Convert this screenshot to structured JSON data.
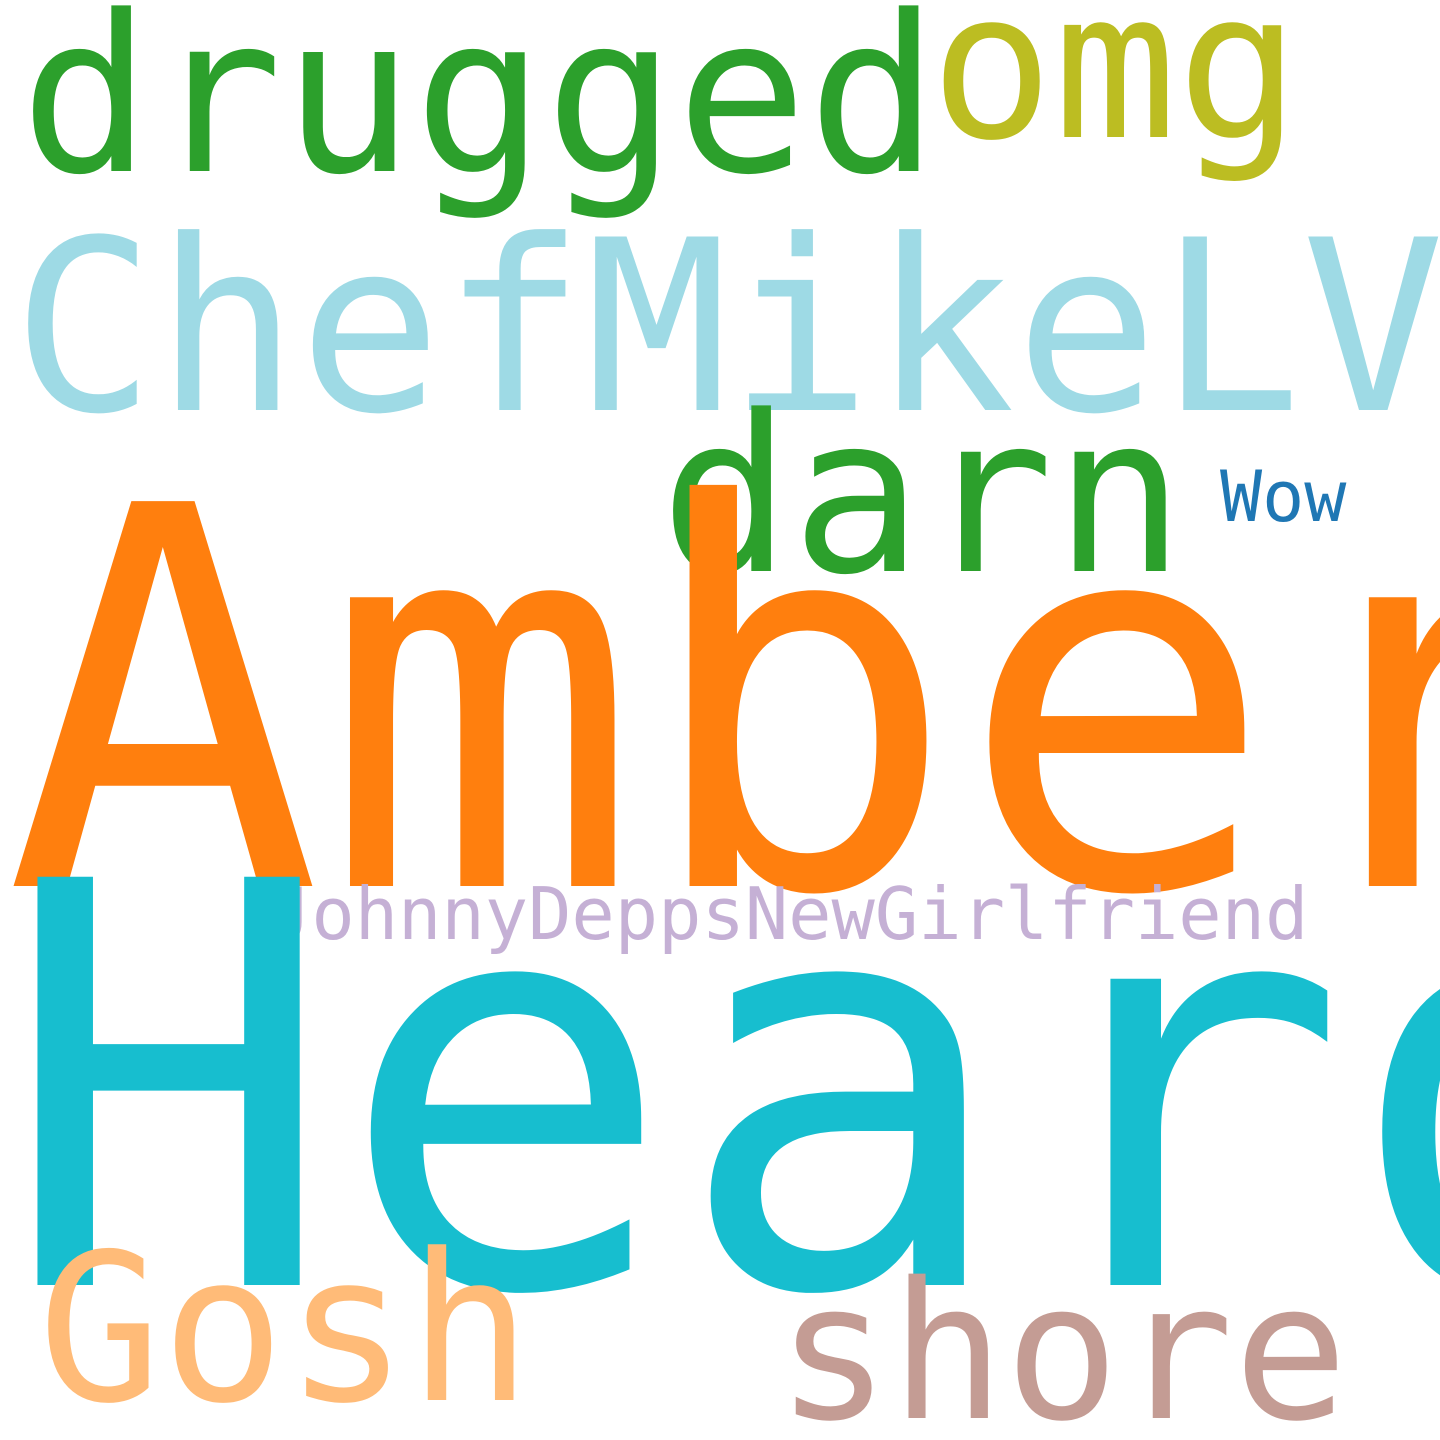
{
  "words": {
    "drugged": "drugged",
    "omg": "omg",
    "chef": "ChefMikeLV",
    "darn": "darn",
    "wow": "Wow",
    "amber": "Amber",
    "johnny": "JohnnyDeppsNewGirlfriend",
    "heard": "Heard",
    "gosh": "Gosh",
    "shore": "shore"
  },
  "colors": {
    "background": "#ffffff",
    "green": "#2ca02c",
    "olive": "#bcbd22",
    "light_cyan": "#9edae5",
    "blue": "#1f77b4",
    "orange": "#ff7f0e",
    "lavender": "#c5b0d5",
    "cyan": "#17becf",
    "peach": "#ffbb78",
    "rose": "#c49c94"
  }
}
